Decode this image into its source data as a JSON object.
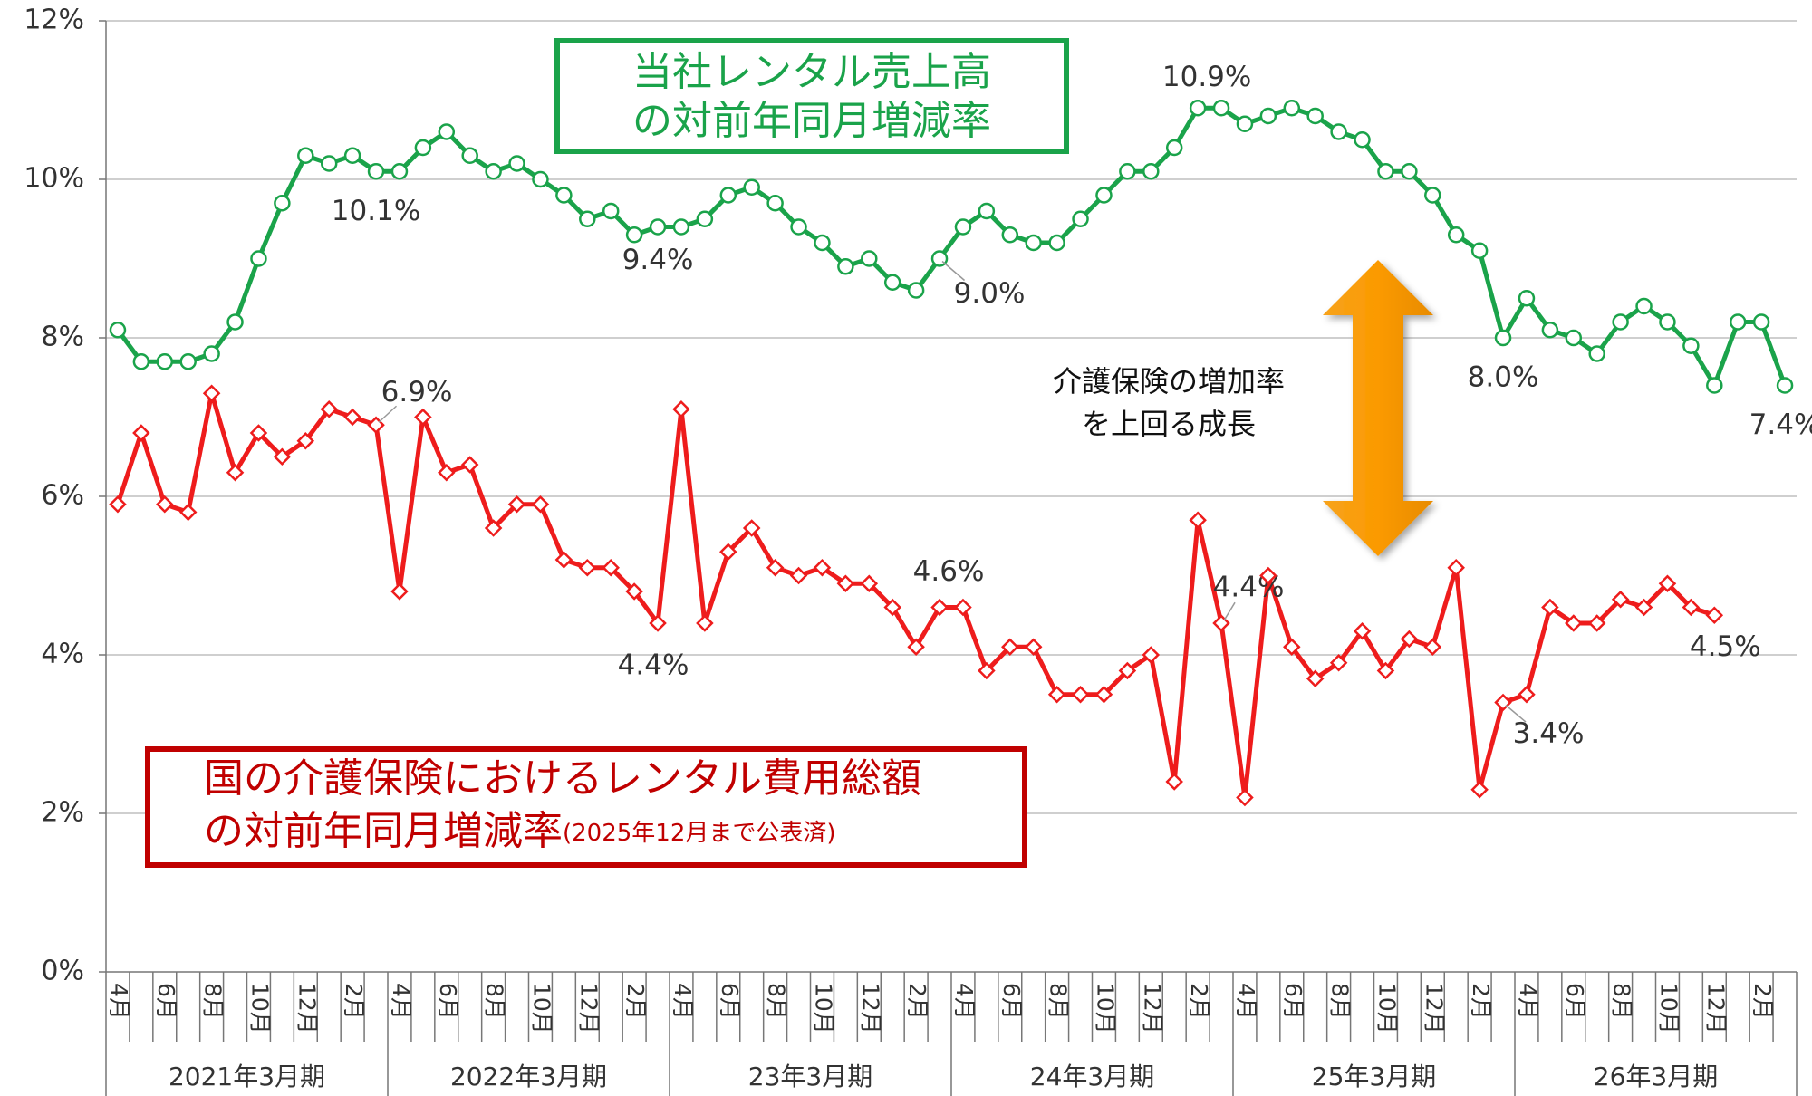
{
  "chart_data": {
    "type": "line",
    "categories": [
      "4月",
      null,
      "6月",
      null,
      "8月",
      null,
      "10月",
      null,
      "12月",
      null,
      "2月",
      null,
      "4月",
      null,
      "6月",
      null,
      "8月",
      null,
      "10月",
      null,
      "12月",
      null,
      "2月",
      null,
      "4月",
      null,
      "6月",
      null,
      "8月",
      null,
      "10月",
      null,
      "12月",
      null,
      "2月",
      null,
      "4月",
      null,
      "6月",
      null,
      "8月",
      null,
      "10月",
      null,
      "12月",
      null,
      "2月",
      null,
      "4月",
      null,
      "6月",
      null,
      "8月",
      null,
      "10月",
      null,
      "12月",
      null,
      "2月",
      null,
      "4月",
      null,
      "6月",
      null,
      "8月",
      null,
      "10月",
      null,
      "12月",
      null,
      "2月",
      null
    ],
    "groups": [
      "2021年3月期",
      "2022年3月期",
      "23年3月期",
      "24年3月期",
      "25年3月期",
      "26年3月期"
    ],
    "series": [
      {
        "name": [
          "当社レンタル売上高",
          "の対前年同月増減率"
        ],
        "color": "#1aa34a",
        "marker": "circle",
        "values": [
          8.1,
          7.7,
          7.7,
          7.7,
          7.8,
          8.2,
          9.0,
          9.7,
          10.3,
          10.2,
          10.3,
          10.1,
          10.1,
          10.4,
          10.6,
          10.3,
          10.1,
          10.2,
          10.0,
          9.8,
          9.5,
          9.6,
          9.3,
          9.4,
          9.4,
          9.5,
          9.8,
          9.9,
          9.7,
          9.4,
          9.2,
          8.9,
          9.0,
          8.7,
          8.6,
          9.0,
          9.4,
          9.6,
          9.3,
          9.2,
          9.2,
          9.5,
          9.8,
          10.1,
          10.1,
          10.4,
          10.9,
          10.9,
          10.7,
          10.8,
          10.9,
          10.8,
          10.6,
          10.5,
          10.1,
          10.1,
          9.8,
          9.3,
          9.1,
          8.0,
          8.5,
          8.1,
          8.0,
          7.8,
          8.2,
          8.4,
          8.2,
          7.9,
          7.4,
          8.2,
          8.2,
          7.4
        ],
        "value_labels": [
          null,
          null,
          null,
          null,
          null,
          null,
          null,
          null,
          null,
          null,
          null,
          "10.1%",
          null,
          null,
          null,
          null,
          null,
          null,
          null,
          null,
          null,
          null,
          null,
          "9.4%",
          null,
          null,
          null,
          null,
          null,
          null,
          null,
          null,
          null,
          null,
          null,
          "9.0%",
          null,
          null,
          null,
          null,
          null,
          null,
          null,
          null,
          null,
          null,
          "10.9%",
          null,
          null,
          null,
          null,
          null,
          null,
          null,
          null,
          null,
          null,
          null,
          null,
          "8.0%",
          null,
          null,
          null,
          null,
          null,
          null,
          null,
          null,
          null,
          null,
          null,
          "7.4%"
        ]
      },
      {
        "name": [
          "国の介護保険におけるレンタル費用総額",
          "の対前年同月増減率"
        ],
        "name_note": "(2025年12月まで公表済)",
        "color": "#ee1c1c",
        "marker": "diamond",
        "values": [
          5.9,
          6.8,
          5.9,
          5.8,
          7.3,
          6.3,
          6.8,
          6.5,
          6.7,
          7.1,
          7.0,
          6.9,
          4.8,
          7.0,
          6.3,
          6.4,
          5.6,
          5.9,
          5.9,
          5.2,
          5.1,
          5.1,
          4.8,
          4.4,
          7.1,
          4.4,
          5.3,
          5.6,
          5.1,
          5.0,
          5.1,
          4.9,
          4.9,
          4.6,
          4.1,
          4.6,
          4.6,
          3.8,
          4.1,
          4.1,
          3.5,
          3.5,
          3.5,
          3.8,
          4.0,
          2.4,
          5.7,
          4.4,
          2.2,
          5.0,
          4.1,
          3.7,
          3.9,
          4.3,
          3.8,
          4.2,
          4.1,
          5.1,
          2.3,
          3.4,
          3.5,
          4.6,
          4.4,
          4.4,
          4.7,
          4.6,
          4.9,
          4.6,
          4.5,
          null,
          null,
          null
        ],
        "value_labels": [
          null,
          null,
          null,
          null,
          null,
          null,
          null,
          null,
          null,
          null,
          null,
          "6.9%",
          null,
          null,
          null,
          null,
          null,
          null,
          null,
          null,
          null,
          null,
          null,
          "4.4%",
          null,
          null,
          null,
          null,
          null,
          null,
          null,
          null,
          null,
          null,
          null,
          "4.6%",
          null,
          null,
          null,
          null,
          null,
          null,
          null,
          null,
          null,
          null,
          null,
          "4.4%",
          null,
          null,
          null,
          null,
          null,
          null,
          null,
          null,
          null,
          null,
          null,
          "3.4%",
          null,
          null,
          null,
          null,
          null,
          null,
          null,
          null,
          "4.5%",
          null,
          null,
          null
        ]
      }
    ],
    "annotation": [
      "介護保険の増加率",
      "を上回る成長"
    ],
    "ylim": [
      0,
      12
    ],
    "yticks": [
      {
        "value": 0,
        "label": "0%"
      },
      {
        "value": 2,
        "label": "2%"
      },
      {
        "value": 4,
        "label": "4%"
      },
      {
        "value": 6,
        "label": "6%"
      },
      {
        "value": 8,
        "label": "8%"
      },
      {
        "value": 10,
        "label": "10%"
      },
      {
        "value": 12,
        "label": "12%"
      }
    ],
    "grid": true
  }
}
